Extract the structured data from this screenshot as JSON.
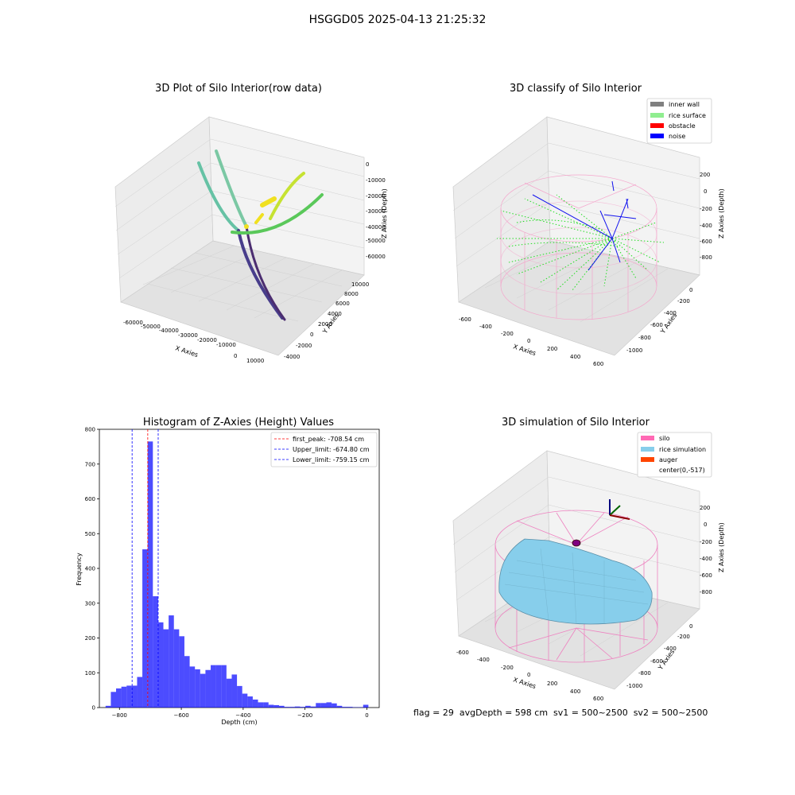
{
  "suptitle": "HSGGD05 2025-04-13 21:25:32",
  "footer": "flag = 29  avgDepth = 598 cm  sv1 = 500~2500  sv2 = 500~2500",
  "panels": {
    "raw": {
      "title": "3D Plot of Silo Interior(row data)",
      "xlabel": "X Axies",
      "ylabel": "Y Axies",
      "zlabel": "Z Axies (Depth)",
      "xticks": [
        "-60000",
        "-50000",
        "-40000",
        "-30000",
        "-20000",
        "-10000",
        "0",
        "10000"
      ],
      "yticks": [
        "-4000",
        "-2000",
        "0",
        "2000",
        "4000",
        "6000",
        "8000",
        "10000"
      ],
      "zticks": [
        "0",
        "-10000",
        "-20000",
        "-30000",
        "-40000",
        "-50000",
        "-60000"
      ]
    },
    "classify": {
      "title": "3D classify of Silo Interior",
      "xlabel": "X Axies",
      "ylabel": "Y Axies",
      "zlabel": "Z Axies (Depth)",
      "xticks": [
        "-600",
        "-400",
        "-200",
        "0",
        "200",
        "400",
        "600"
      ],
      "yticks": [
        "-1000",
        "-800",
        "-600",
        "-400",
        "-200",
        "0"
      ],
      "zticks": [
        "200",
        "0",
        "-200",
        "-400",
        "-600",
        "-800"
      ],
      "legend": [
        {
          "label": "inner wall",
          "color": "#808080"
        },
        {
          "label": "rice surface",
          "color": "#90ee90"
        },
        {
          "label": "obstacle",
          "color": "#ff0000"
        },
        {
          "label": "noise",
          "color": "#0000ff"
        }
      ]
    },
    "simulation": {
      "title": "3D simulation of Silo Interior",
      "xlabel": "X Axies",
      "ylabel": "Y Axies",
      "zlabel": "Z Axies (Depth)",
      "xticks": [
        "-600",
        "-400",
        "-200",
        "0",
        "200",
        "400",
        "600"
      ],
      "yticks": [
        "-1000",
        "-800",
        "-600",
        "-400",
        "-200",
        "0"
      ],
      "zticks": [
        "200",
        "0",
        "-200",
        "-400",
        "-600",
        "-800"
      ],
      "legend": [
        {
          "label": "silo",
          "color": "#ff69b4"
        },
        {
          "label": "rice simulation",
          "color": "#87ceeb"
        },
        {
          "label": "auger",
          "color": "#ff4500"
        },
        {
          "label": "center(0,-517)",
          "color": ""
        }
      ]
    }
  },
  "chart_data": {
    "type": "bar",
    "title": "Histogram of Z-Axies (Height) Values",
    "xlabel": "Depth (cm)",
    "ylabel": "Frequency",
    "xlim": [
      -865,
      40
    ],
    "ylim": [
      0,
      800
    ],
    "xticks": [
      -800,
      -600,
      -400,
      -200,
      0
    ],
    "yticks": [
      0,
      100,
      200,
      300,
      400,
      500,
      600,
      700,
      800
    ],
    "bar_color": "#0000ff",
    "bin_width": 17,
    "bin_left_edges": [
      -845,
      -828,
      -811,
      -794,
      -777,
      -760,
      -743,
      -726,
      -709,
      -692,
      -675,
      -658,
      -641,
      -624,
      -607,
      -590,
      -573,
      -556,
      -539,
      -522,
      -505,
      -488,
      -471,
      -454,
      -437,
      -420,
      -403,
      -386,
      -369,
      -352,
      -335,
      -318,
      -301,
      -284,
      -267,
      -250,
      -233,
      -216,
      -199,
      -182,
      -165,
      -148,
      -131,
      -114,
      -97,
      -80,
      -63,
      -46,
      -29,
      -12
    ],
    "values": [
      5,
      45,
      55,
      60,
      63,
      63,
      88,
      455,
      765,
      320,
      245,
      225,
      265,
      225,
      205,
      148,
      118,
      110,
      97,
      108,
      122,
      122,
      122,
      83,
      95,
      62,
      40,
      32,
      23,
      15,
      15,
      8,
      7,
      5,
      2,
      2,
      3,
      2,
      5,
      3,
      13,
      13,
      15,
      12,
      5,
      2,
      2,
      1,
      1,
      8
    ],
    "vlines": [
      {
        "label": "first_peak: -708.54 cm",
        "x": -708.54,
        "color": "#ff0000"
      },
      {
        "label": "Upper_limit: -674.80 cm",
        "x": -674.8,
        "color": "#0000ff"
      },
      {
        "label": "Lower_limit: -759.15 cm",
        "x": -759.15,
        "color": "#0000ff"
      }
    ]
  }
}
